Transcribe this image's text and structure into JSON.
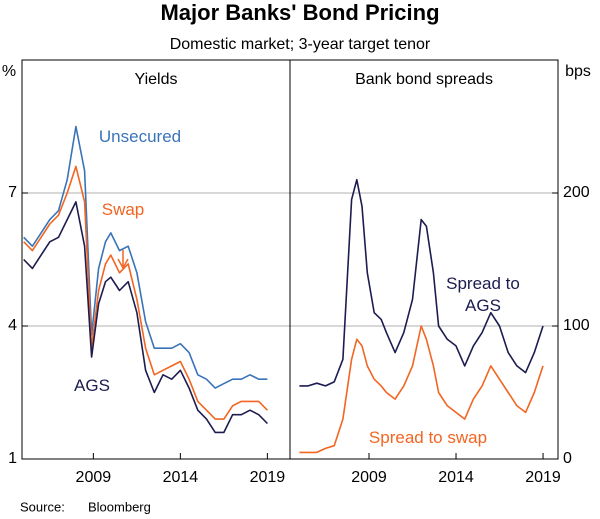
{
  "title": "Major Banks' Bond Pricing",
  "subtitle": "Domestic market; 3-year target tenor",
  "source_label": "Source:",
  "source": "Bloomberg",
  "chart_data": [
    {
      "type": "line",
      "title": "Yields",
      "y_unit": "%",
      "axis_side": "left",
      "grid": true,
      "x": [
        2005,
        2005.5,
        2006,
        2006.5,
        2007,
        2007.5,
        2008,
        2008.5,
        2008.9,
        2009.3,
        2009.7,
        2010,
        2010.5,
        2011,
        2011.5,
        2012,
        2012.5,
        2013,
        2013.5,
        2014,
        2014.5,
        2015,
        2015.5,
        2016,
        2016.5,
        2017,
        2017.5,
        2018,
        2018.5,
        2019
      ],
      "xlim": [
        2004.9,
        2020.3
      ],
      "xticks": [
        2009,
        2014,
        2019
      ],
      "ylim": [
        1,
        10
      ],
      "yticks": [
        1,
        4,
        7
      ],
      "series": [
        {
          "name": "Unsecured",
          "color": "#3a74b8",
          "values": [
            6.0,
            5.8,
            6.1,
            6.4,
            6.6,
            7.3,
            8.5,
            7.5,
            3.8,
            5.3,
            5.9,
            6.1,
            5.7,
            5.8,
            5.2,
            4.1,
            3.5,
            3.5,
            3.5,
            3.6,
            3.4,
            2.9,
            2.8,
            2.6,
            2.7,
            2.8,
            2.8,
            2.9,
            2.8,
            2.8
          ]
        },
        {
          "name": "Swap",
          "color": "#f26522",
          "values": [
            5.9,
            5.7,
            6.0,
            6.3,
            6.5,
            7.0,
            7.6,
            6.8,
            3.5,
            4.8,
            5.4,
            5.6,
            5.2,
            5.4,
            4.6,
            3.5,
            2.9,
            3.0,
            3.1,
            3.2,
            2.8,
            2.3,
            2.1,
            1.9,
            1.9,
            2.2,
            2.3,
            2.3,
            2.3,
            2.1
          ]
        },
        {
          "name": "AGS",
          "color": "#1c1c50",
          "values": [
            5.5,
            5.3,
            5.6,
            5.9,
            6.0,
            6.4,
            6.8,
            5.8,
            3.3,
            4.5,
            5.0,
            5.1,
            4.8,
            5.0,
            4.3,
            3.0,
            2.5,
            2.9,
            2.8,
            3.0,
            2.6,
            2.1,
            1.9,
            1.6,
            1.6,
            2.0,
            2.0,
            2.1,
            2.0,
            1.8
          ]
        }
      ]
    },
    {
      "type": "line",
      "title": "Bank bond spreads",
      "y_unit": "bps",
      "axis_side": "right",
      "grid": true,
      "x": [
        2005,
        2005.5,
        2006,
        2006.5,
        2007,
        2007.5,
        2008,
        2008.3,
        2008.6,
        2008.9,
        2009.3,
        2009.7,
        2010,
        2010.5,
        2011,
        2011.5,
        2012,
        2012.3,
        2012.7,
        2013,
        2013.5,
        2014,
        2014.5,
        2015,
        2015.5,
        2016,
        2016.5,
        2017,
        2017.5,
        2018,
        2018.5,
        2019
      ],
      "xlim": [
        2004.46,
        2019.86
      ],
      "xticks": [
        2009,
        2014,
        2019
      ],
      "ylim": [
        0,
        300
      ],
      "yticks": [
        0,
        100,
        200
      ],
      "series": [
        {
          "name": "Spread to AGS",
          "color": "#1c1c50",
          "values": [
            55,
            55,
            57,
            55,
            58,
            75,
            195,
            210,
            190,
            140,
            110,
            105,
            95,
            80,
            95,
            120,
            180,
            175,
            140,
            100,
            90,
            85,
            70,
            85,
            95,
            110,
            100,
            80,
            70,
            65,
            80,
            100
          ]
        },
        {
          "name": "Spread to swap",
          "color": "#f26522",
          "values": [
            5,
            5,
            5,
            8,
            10,
            30,
            75,
            90,
            85,
            70,
            60,
            55,
            50,
            45,
            55,
            70,
            100,
            90,
            70,
            50,
            40,
            35,
            30,
            45,
            55,
            70,
            60,
            50,
            40,
            35,
            50,
            70
          ]
        }
      ]
    }
  ]
}
